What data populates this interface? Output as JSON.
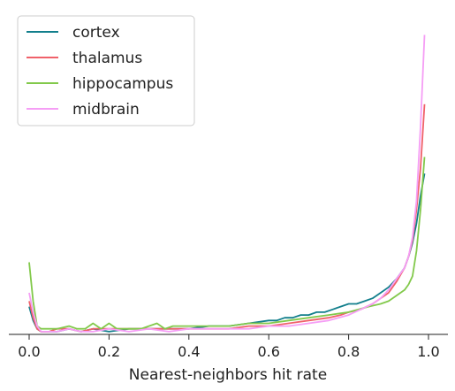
{
  "chart_data": {
    "type": "line",
    "xlabel": "Nearest-neighbors hit rate",
    "ylabel": "",
    "title": "",
    "xlim": [
      -0.02,
      1.02
    ],
    "ylim": [
      0,
      1.0
    ],
    "xticks": [
      0.0,
      0.2,
      0.4,
      0.6,
      0.8,
      1.0
    ],
    "xtick_labels": [
      "0.0",
      "0.2",
      "0.4",
      "0.6",
      "0.8",
      "1.0"
    ],
    "grid": false,
    "legend_position": "top-left",
    "series": [
      {
        "name": "cortex",
        "color": "#127f8c",
        "x": [
          0.0,
          0.01,
          0.02,
          0.03,
          0.05,
          0.07,
          0.1,
          0.13,
          0.16,
          0.2,
          0.25,
          0.3,
          0.35,
          0.4,
          0.45,
          0.5,
          0.55,
          0.6,
          0.62,
          0.64,
          0.66,
          0.68,
          0.7,
          0.72,
          0.74,
          0.76,
          0.78,
          0.8,
          0.82,
          0.84,
          0.86,
          0.88,
          0.9,
          0.92,
          0.94,
          0.95,
          0.96,
          0.97,
          0.98,
          0.99
        ],
        "y": [
          0.1,
          0.05,
          0.02,
          0.01,
          0.01,
          0.01,
          0.02,
          0.01,
          0.02,
          0.01,
          0.02,
          0.02,
          0.02,
          0.02,
          0.03,
          0.03,
          0.04,
          0.05,
          0.05,
          0.06,
          0.06,
          0.07,
          0.07,
          0.08,
          0.08,
          0.09,
          0.1,
          0.11,
          0.11,
          0.12,
          0.13,
          0.15,
          0.17,
          0.2,
          0.24,
          0.28,
          0.33,
          0.4,
          0.5,
          0.58
        ]
      },
      {
        "name": "thalamus",
        "color": "#f0616a",
        "x": [
          0.0,
          0.01,
          0.02,
          0.03,
          0.05,
          0.07,
          0.1,
          0.13,
          0.16,
          0.2,
          0.25,
          0.3,
          0.35,
          0.4,
          0.45,
          0.5,
          0.55,
          0.6,
          0.65,
          0.7,
          0.75,
          0.78,
          0.8,
          0.83,
          0.86,
          0.88,
          0.9,
          0.92,
          0.94,
          0.95,
          0.96,
          0.97,
          0.98,
          0.99
        ],
        "y": [
          0.12,
          0.06,
          0.02,
          0.01,
          0.01,
          0.02,
          0.02,
          0.01,
          0.02,
          0.02,
          0.02,
          0.02,
          0.02,
          0.02,
          0.02,
          0.02,
          0.03,
          0.03,
          0.04,
          0.05,
          0.06,
          0.07,
          0.08,
          0.09,
          0.11,
          0.13,
          0.15,
          0.19,
          0.24,
          0.28,
          0.34,
          0.45,
          0.6,
          0.83
        ]
      },
      {
        "name": "hippocampus",
        "color": "#82c94b",
        "x": [
          0.0,
          0.01,
          0.02,
          0.03,
          0.05,
          0.07,
          0.1,
          0.12,
          0.14,
          0.16,
          0.18,
          0.2,
          0.22,
          0.25,
          0.28,
          0.3,
          0.32,
          0.34,
          0.36,
          0.4,
          0.45,
          0.5,
          0.55,
          0.6,
          0.65,
          0.7,
          0.75,
          0.8,
          0.85,
          0.88,
          0.9,
          0.92,
          0.94,
          0.95,
          0.96,
          0.97,
          0.98,
          0.99
        ],
        "y": [
          0.26,
          0.12,
          0.03,
          0.02,
          0.02,
          0.02,
          0.03,
          0.02,
          0.02,
          0.04,
          0.02,
          0.04,
          0.02,
          0.02,
          0.02,
          0.03,
          0.04,
          0.02,
          0.03,
          0.03,
          0.03,
          0.03,
          0.04,
          0.04,
          0.05,
          0.06,
          0.07,
          0.08,
          0.1,
          0.11,
          0.12,
          0.14,
          0.16,
          0.18,
          0.21,
          0.3,
          0.45,
          0.64
        ]
      },
      {
        "name": "midbrain",
        "color": "#f59ef5",
        "x": [
          0.0,
          0.01,
          0.02,
          0.03,
          0.05,
          0.07,
          0.1,
          0.13,
          0.16,
          0.2,
          0.25,
          0.3,
          0.35,
          0.4,
          0.45,
          0.5,
          0.55,
          0.6,
          0.65,
          0.7,
          0.75,
          0.8,
          0.83,
          0.86,
          0.88,
          0.9,
          0.92,
          0.94,
          0.95,
          0.96,
          0.97,
          0.98,
          0.99
        ],
        "y": [
          0.15,
          0.08,
          0.03,
          0.01,
          0.01,
          0.01,
          0.02,
          0.01,
          0.01,
          0.02,
          0.01,
          0.02,
          0.01,
          0.02,
          0.02,
          0.02,
          0.02,
          0.03,
          0.03,
          0.04,
          0.05,
          0.07,
          0.09,
          0.11,
          0.13,
          0.16,
          0.2,
          0.24,
          0.28,
          0.35,
          0.48,
          0.75,
          1.08
        ]
      }
    ]
  }
}
